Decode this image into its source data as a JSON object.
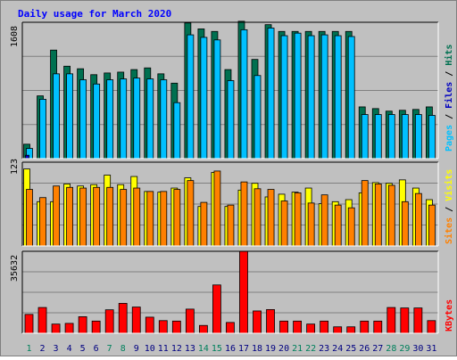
{
  "chart_data": [
    {
      "type": "bar",
      "title": "Daily usage for March 2020",
      "categories": [
        "1",
        "2",
        "3",
        "4",
        "5",
        "6",
        "7",
        "8",
        "9",
        "10",
        "11",
        "12",
        "13",
        "14",
        "15",
        "16",
        "17",
        "18",
        "19",
        "20",
        "21",
        "22",
        "23",
        "24",
        "25",
        "26",
        "27",
        "28",
        "29",
        "30",
        "31"
      ],
      "weekend_days": [
        "1",
        "7",
        "8",
        "14",
        "15",
        "21",
        "22",
        "28",
        "29"
      ],
      "ylabel_max": "1608",
      "ylim": [
        0,
        1608
      ],
      "series": [
        {
          "name": "Hits",
          "color": "#007050",
          "values": [
            170,
            740,
            1280,
            1090,
            1060,
            990,
            1010,
            1020,
            1050,
            1070,
            1000,
            890,
            1600,
            1530,
            1500,
            1050,
            1620,
            1170,
            1580,
            1500,
            1500,
            1500,
            1500,
            1500,
            1500,
            610,
            590,
            560,
            570,
            580,
            610
          ]
        },
        {
          "name": "Files",
          "color": "#0000c0",
          "values": [
            40,
            0,
            0,
            0,
            0,
            0,
            0,
            0,
            0,
            0,
            0,
            0,
            0,
            0,
            0,
            0,
            0,
            0,
            0,
            0,
            0,
            0,
            0,
            0,
            0,
            0,
            0,
            0,
            0,
            0,
            0
          ]
        },
        {
          "name": "Pages",
          "color": "#00c0ff",
          "values": [
            120,
            700,
            1000,
            1000,
            930,
            880,
            930,
            940,
            950,
            940,
            930,
            660,
            1460,
            1430,
            1400,
            920,
            1520,
            980,
            1540,
            1450,
            1480,
            1450,
            1460,
            1450,
            1440,
            520,
            520,
            520,
            520,
            520,
            510
          ]
        }
      ]
    },
    {
      "type": "bar",
      "ylabel_max": "123",
      "ylim": [
        0,
        123
      ],
      "series": [
        {
          "name": "Visits",
          "color": "#ffff00",
          "values": [
            113,
            65,
            65,
            91,
            88,
            90,
            104,
            90,
            102,
            80,
            79,
            85,
            100,
            58,
            108,
            58,
            82,
            92,
            72,
            76,
            79,
            85,
            62,
            65,
            68,
            78,
            93,
            92,
            97,
            85,
            68
          ]
        },
        {
          "name": "Sites",
          "color": "#ff8000",
          "values": [
            83,
            71,
            88,
            86,
            85,
            86,
            86,
            83,
            85,
            80,
            80,
            83,
            96,
            64,
            110,
            60,
            94,
            84,
            83,
            66,
            78,
            63,
            75,
            60,
            56,
            96,
            91,
            89,
            65,
            77,
            60
          ]
        }
      ]
    },
    {
      "type": "bar",
      "ylabel_max": "35632",
      "ylim": [
        0,
        35632
      ],
      "series": [
        {
          "name": "KBytes",
          "color": "#ff0000",
          "values": [
            8200,
            11200,
            4000,
            4300,
            7200,
            5300,
            10200,
            13000,
            11400,
            7000,
            5500,
            5300,
            10500,
            3400,
            21000,
            4700,
            35632,
            9700,
            10300,
            5300,
            5300,
            4000,
            5300,
            2800,
            2800,
            5300,
            5300,
            11200,
            11000,
            11000,
            5500
          ]
        }
      ]
    }
  ],
  "colors": {
    "background": "#c0c0c0",
    "plot_background": "#c0c0c0",
    "grid": "#808080",
    "title": "#0000ff",
    "weekend_label": "#00805c",
    "weekday_label": "#000080"
  }
}
